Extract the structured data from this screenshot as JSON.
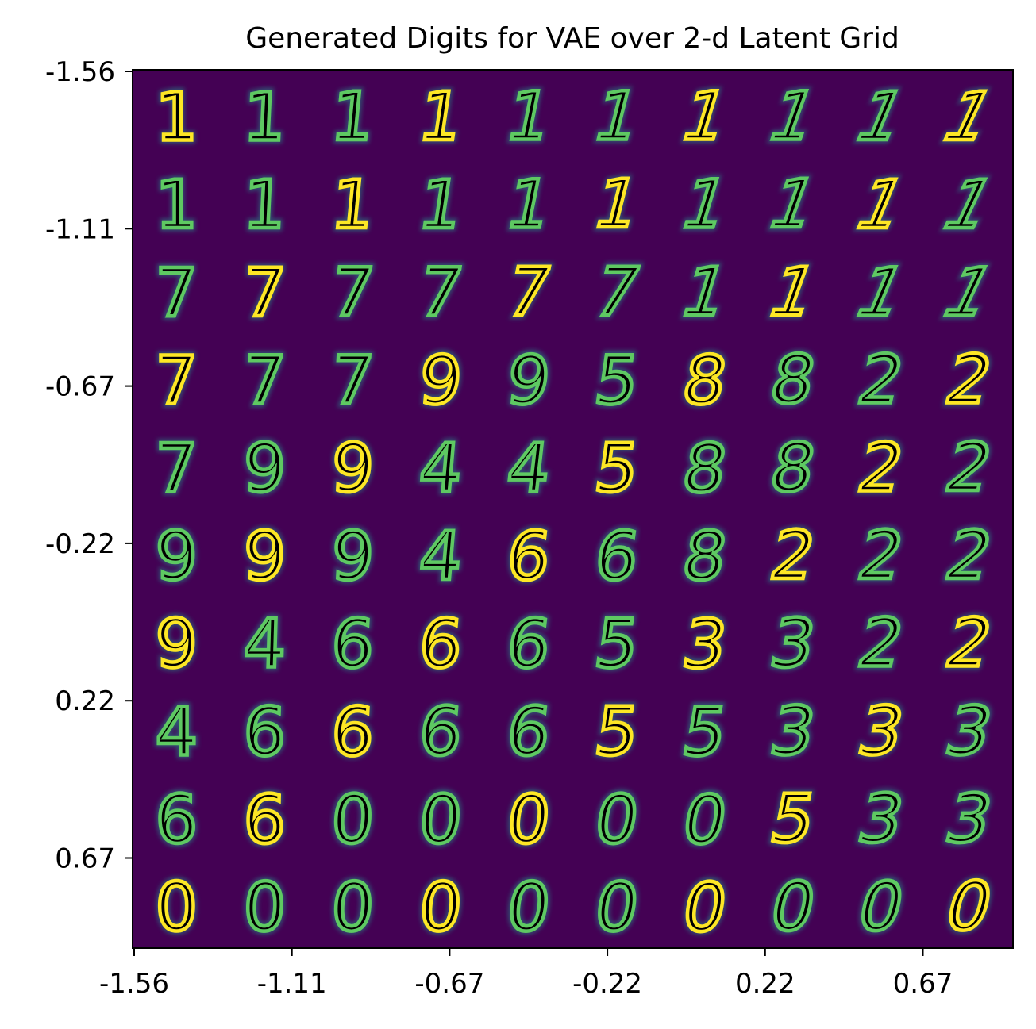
{
  "chart_data": {
    "type": "heatmap",
    "title": "Generated Digits for VAE over 2-d Latent Grid",
    "xlabel": "",
    "ylabel": "",
    "grid": false,
    "colormap": "viridis",
    "background_color": "#440154",
    "stroke_colors": [
      "#21918c",
      "#5ec962",
      "#fde725"
    ],
    "x_ticks": [
      "-1.56",
      "-1.11",
      "-0.67",
      "-0.22",
      "0.22",
      "0.67"
    ],
    "y_ticks": [
      "-1.56",
      "-1.11",
      "-0.67",
      "-0.22",
      "0.22",
      "0.67"
    ],
    "grid_size": [
      10,
      10
    ],
    "cells": [
      [
        "1",
        "1",
        "1",
        "1",
        "1",
        "1",
        "1",
        "1",
        "1",
        "1"
      ],
      [
        "1",
        "1",
        "1",
        "1",
        "1",
        "1",
        "1",
        "1",
        "1",
        "1"
      ],
      [
        "7",
        "7",
        "7",
        "7",
        "7",
        "7",
        "1",
        "1",
        "1",
        "1"
      ],
      [
        "7",
        "7",
        "7",
        "9",
        "9",
        "5",
        "8",
        "8",
        "2",
        "2"
      ],
      [
        "7",
        "9",
        "9",
        "4",
        "4",
        "5",
        "8",
        "8",
        "2",
        "2"
      ],
      [
        "9",
        "9",
        "9",
        "4",
        "6",
        "6",
        "8",
        "2",
        "2",
        "2"
      ],
      [
        "9",
        "4",
        "6",
        "6",
        "6",
        "5",
        "3",
        "3",
        "2",
        "2"
      ],
      [
        "4",
        "6",
        "6",
        "6",
        "6",
        "5",
        "5",
        "3",
        "3",
        "3"
      ],
      [
        "6",
        "6",
        "0",
        "0",
        "0",
        "0",
        "0",
        "5",
        "3",
        "3"
      ],
      [
        "0",
        "0",
        "0",
        "0",
        "0",
        "0",
        "0",
        "0",
        "0",
        "0"
      ]
    ]
  }
}
